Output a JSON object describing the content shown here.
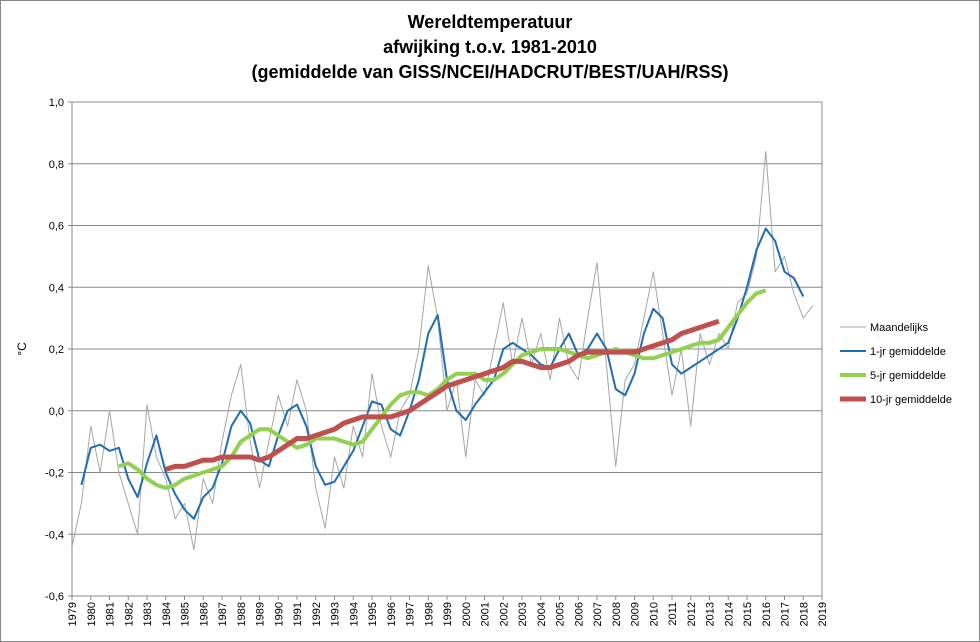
{
  "chart_data": {
    "type": "line",
    "title": [
      "Wereldtemperatuur",
      "afwijking t.o.v. 1981-2010",
      "(gemiddelde van GISS/NCEI/HADCRUT/BEST/UAH/RSS)"
    ],
    "ylabel": "°C",
    "x": [
      1979,
      1979.5,
      1980,
      1980.5,
      1981,
      1981.5,
      1982,
      1982.5,
      1983,
      1983.5,
      1984,
      1984.5,
      1985,
      1985.5,
      1986,
      1986.5,
      1987,
      1987.5,
      1988,
      1988.5,
      1989,
      1989.5,
      1990,
      1990.5,
      1991,
      1991.5,
      1992,
      1992.5,
      1993,
      1993.5,
      1994,
      1994.5,
      1995,
      1995.5,
      1996,
      1996.5,
      1997,
      1997.5,
      1998,
      1998.5,
      1999,
      1999.5,
      2000,
      2000.5,
      2001,
      2001.5,
      2002,
      2002.5,
      2003,
      2003.5,
      2004,
      2004.5,
      2005,
      2005.5,
      2006,
      2006.5,
      2007,
      2007.5,
      2008,
      2008.5,
      2009,
      2009.5,
      2010,
      2010.5,
      2011,
      2011.5,
      2012,
      2012.5,
      2013,
      2013.5,
      2014,
      2014.5,
      2015,
      2015.5,
      2016,
      2016.5,
      2017,
      2017.5,
      2018,
      2018.5
    ],
    "series": [
      {
        "name": "Maandelijks",
        "color": "#a6a6a6",
        "width": 1,
        "values": [
          -0.44,
          -0.3,
          -0.05,
          -0.2,
          0.0,
          -0.2,
          -0.3,
          -0.4,
          0.02,
          -0.15,
          -0.22,
          -0.35,
          -0.3,
          -0.45,
          -0.22,
          -0.3,
          -0.1,
          0.05,
          0.15,
          -0.1,
          -0.25,
          -0.1,
          0.05,
          -0.05,
          0.1,
          0.0,
          -0.25,
          -0.38,
          -0.15,
          -0.25,
          -0.05,
          -0.15,
          0.12,
          -0.05,
          -0.15,
          0.0,
          0.05,
          0.2,
          0.47,
          0.3,
          0.0,
          0.1,
          -0.15,
          0.1,
          0.05,
          0.2,
          0.35,
          0.15,
          0.3,
          0.15,
          0.25,
          0.1,
          0.3,
          0.15,
          0.1,
          0.3,
          0.48,
          0.15,
          -0.18,
          0.1,
          0.15,
          0.3,
          0.45,
          0.25,
          0.05,
          0.2,
          -0.05,
          0.25,
          0.15,
          0.25,
          0.2,
          0.35,
          0.38,
          0.5,
          0.84,
          0.45,
          0.5,
          0.38,
          0.3,
          0.34
        ]
      },
      {
        "name": "1-jr gemiddelde",
        "color": "#1f6eb5",
        "width": 2,
        "values": [
          null,
          -0.24,
          -0.12,
          -0.11,
          -0.13,
          -0.12,
          -0.22,
          -0.28,
          -0.17,
          -0.08,
          -0.2,
          -0.27,
          -0.32,
          -0.35,
          -0.28,
          -0.25,
          -0.17,
          -0.05,
          0.0,
          -0.04,
          -0.16,
          -0.18,
          -0.08,
          0.0,
          0.02,
          -0.05,
          -0.18,
          -0.24,
          -0.23,
          -0.18,
          -0.13,
          -0.05,
          0.03,
          0.02,
          -0.06,
          -0.08,
          0.0,
          0.1,
          0.25,
          0.31,
          0.1,
          0.0,
          -0.03,
          0.02,
          0.06,
          0.1,
          0.2,
          0.22,
          0.2,
          0.18,
          0.15,
          0.14,
          0.2,
          0.25,
          0.18,
          0.2,
          0.25,
          0.2,
          0.07,
          0.05,
          0.12,
          0.25,
          0.33,
          0.3,
          0.15,
          0.12,
          0.14,
          0.16,
          0.18,
          0.2,
          0.22,
          0.3,
          0.4,
          0.52,
          0.59,
          0.55,
          0.45,
          0.43,
          0.37,
          null
        ]
      },
      {
        "name": "5-jr gemiddelde",
        "color": "#92d050",
        "width": 4,
        "values": [
          null,
          null,
          null,
          null,
          null,
          -0.18,
          -0.17,
          -0.19,
          -0.22,
          -0.24,
          -0.25,
          -0.24,
          -0.22,
          -0.21,
          -0.2,
          -0.19,
          -0.18,
          -0.15,
          -0.1,
          -0.08,
          -0.06,
          -0.06,
          -0.08,
          -0.1,
          -0.12,
          -0.11,
          -0.09,
          -0.09,
          -0.09,
          -0.1,
          -0.11,
          -0.1,
          -0.06,
          -0.02,
          0.02,
          0.05,
          0.06,
          0.06,
          0.05,
          0.07,
          0.1,
          0.12,
          0.12,
          0.12,
          0.1,
          0.1,
          0.12,
          0.15,
          0.18,
          0.19,
          0.2,
          0.2,
          0.2,
          0.19,
          0.18,
          0.17,
          0.18,
          0.19,
          0.2,
          0.19,
          0.18,
          0.17,
          0.17,
          0.18,
          0.19,
          0.2,
          0.21,
          0.22,
          0.22,
          0.23,
          0.27,
          0.31,
          0.35,
          0.38,
          0.39,
          null,
          null,
          null,
          null,
          null
        ]
      },
      {
        "name": "10-jr gemiddelde",
        "color": "#c0504d",
        "width": 5,
        "values": [
          null,
          null,
          null,
          null,
          null,
          null,
          null,
          null,
          null,
          null,
          -0.19,
          -0.18,
          -0.18,
          -0.17,
          -0.16,
          -0.16,
          -0.15,
          -0.15,
          -0.15,
          -0.15,
          -0.16,
          -0.15,
          -0.13,
          -0.11,
          -0.09,
          -0.09,
          -0.08,
          -0.07,
          -0.06,
          -0.04,
          -0.03,
          -0.02,
          -0.02,
          -0.02,
          -0.02,
          -0.01,
          0.0,
          0.02,
          0.04,
          0.06,
          0.08,
          0.09,
          0.1,
          0.11,
          0.12,
          0.13,
          0.14,
          0.16,
          0.16,
          0.15,
          0.14,
          0.14,
          0.15,
          0.16,
          0.18,
          0.19,
          0.19,
          0.19,
          0.19,
          0.19,
          0.19,
          0.2,
          0.21,
          0.22,
          0.23,
          0.25,
          0.26,
          0.27,
          0.28,
          0.29,
          null,
          null,
          null,
          null,
          null,
          null,
          null,
          null,
          null,
          null
        ]
      }
    ],
    "xlim": [
      1979,
      2019
    ],
    "xticks": [
      1979,
      1980,
      1981,
      1982,
      1983,
      1984,
      1985,
      1986,
      1987,
      1988,
      1989,
      1990,
      1991,
      1992,
      1993,
      1994,
      1995,
      1996,
      1997,
      1998,
      1999,
      2000,
      2001,
      2002,
      2003,
      2004,
      2005,
      2006,
      2007,
      2008,
      2009,
      2010,
      2011,
      2012,
      2013,
      2014,
      2015,
      2016,
      2017,
      2018,
      2019
    ],
    "ylim": [
      -0.6,
      1.0
    ],
    "yticks": [
      {
        "value": -0.6,
        "label": "-0,6"
      },
      {
        "value": -0.4,
        "label": "-0,4"
      },
      {
        "value": -0.2,
        "label": "-0,2"
      },
      {
        "value": 0.0,
        "label": "0,0"
      },
      {
        "value": 0.2,
        "label": "0,2"
      },
      {
        "value": 0.4,
        "label": "0,4"
      },
      {
        "value": 0.6,
        "label": "0,6"
      },
      {
        "value": 0.8,
        "label": "0,8"
      },
      {
        "value": 1.0,
        "label": "1,0"
      }
    ],
    "grid": true,
    "legend": "right"
  }
}
